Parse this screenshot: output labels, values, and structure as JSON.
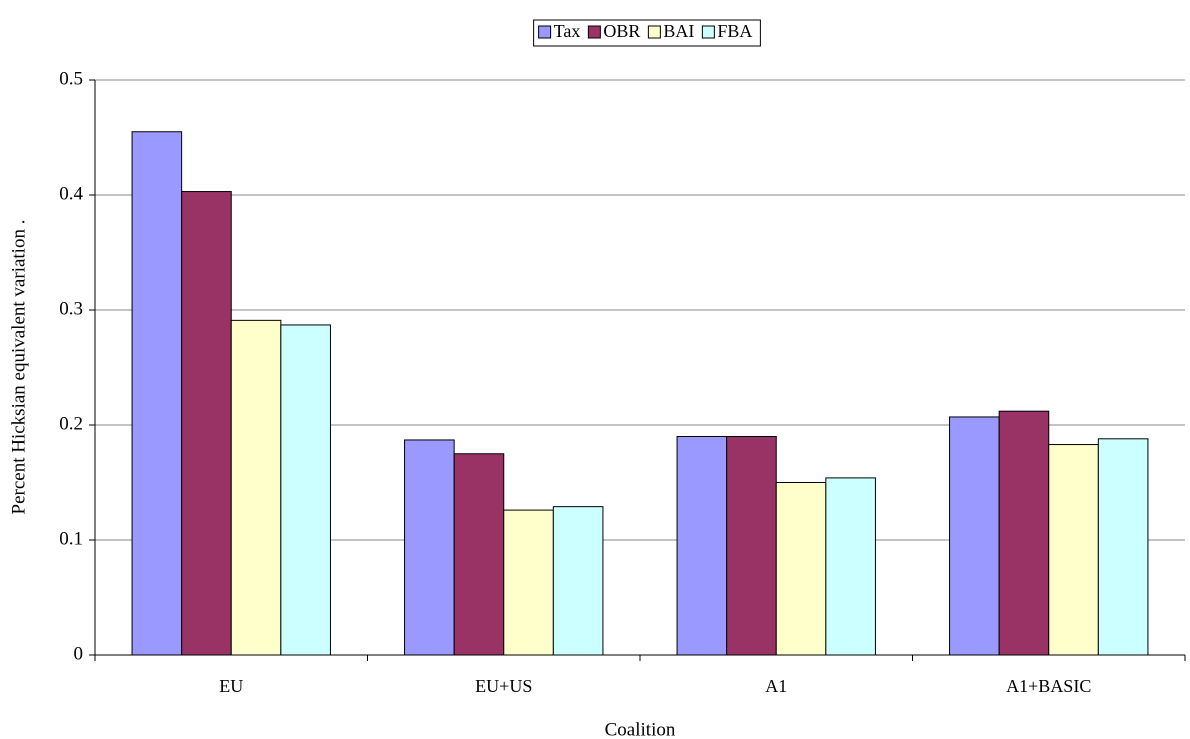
{
  "chart_data": {
    "type": "bar",
    "x_label": "Coalition",
    "y_label": "Percent Hicksian equivalent variation .",
    "categories": [
      "EU",
      "EU+US",
      "A1",
      "A1+BASIC"
    ],
    "series": [
      {
        "name": "Tax",
        "color": "#9999ff",
        "values": [
          0.455,
          0.187,
          0.19,
          0.207
        ]
      },
      {
        "name": "OBR",
        "color": "#993366",
        "values": [
          0.403,
          0.175,
          0.19,
          0.212
        ]
      },
      {
        "name": "BAI",
        "color": "#ffffcc",
        "values": [
          0.291,
          0.126,
          0.15,
          0.183
        ]
      },
      {
        "name": "FBA",
        "color": "#ccffff",
        "values": [
          0.287,
          0.129,
          0.154,
          0.188
        ]
      }
    ],
    "ylim": [
      0,
      0.5
    ],
    "yticks": [
      0,
      0.1,
      0.2,
      0.3,
      0.4,
      0.5
    ],
    "grid": true,
    "legend": "top"
  }
}
